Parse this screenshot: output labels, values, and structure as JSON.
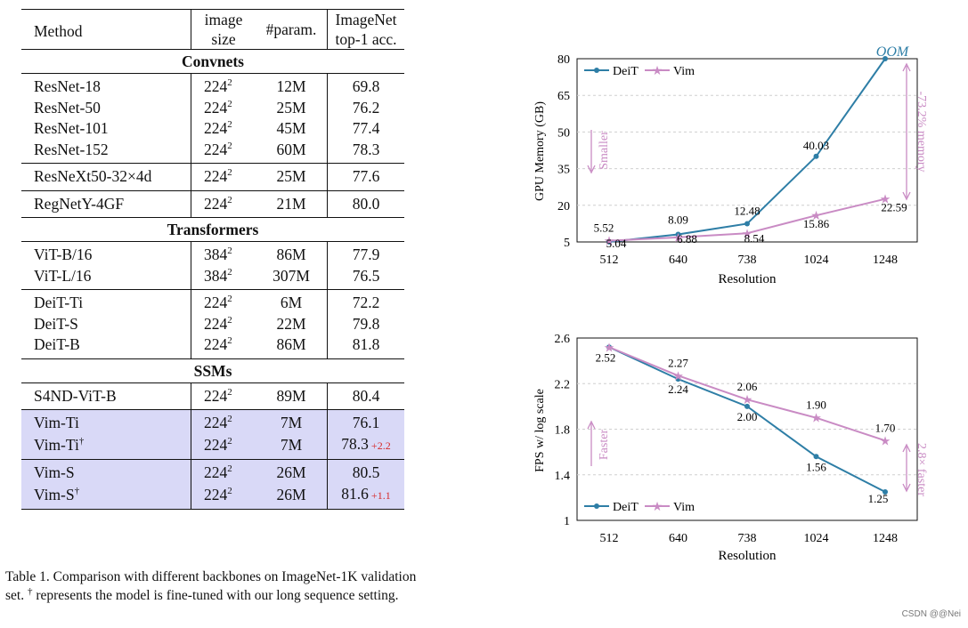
{
  "table": {
    "headers": {
      "method": "Method",
      "size_l1": "image",
      "size_l2": "size",
      "param": "#param.",
      "acc_l1": "ImageNet",
      "acc_l2": "top-1 acc."
    },
    "sections": {
      "convnets": "Convnets",
      "transformers": "Transformers",
      "ssms": "SSMs"
    },
    "rows": [
      {
        "method": "ResNet-18",
        "size": "224",
        "param": "12M",
        "acc": "69.8"
      },
      {
        "method": "ResNet-50",
        "size": "224",
        "param": "25M",
        "acc": "76.2"
      },
      {
        "method": "ResNet-101",
        "size": "224",
        "param": "45M",
        "acc": "77.4"
      },
      {
        "method": "ResNet-152",
        "size": "224",
        "param": "60M",
        "acc": "78.3"
      },
      {
        "method": "ResNeXt50-32×4d",
        "size": "224",
        "param": "25M",
        "acc": "77.6"
      },
      {
        "method": "RegNetY-4GF",
        "size": "224",
        "param": "21M",
        "acc": "80.0"
      },
      {
        "method": "ViT-B/16",
        "size": "384",
        "param": "86M",
        "acc": "77.9"
      },
      {
        "method": "ViT-L/16",
        "size": "384",
        "param": "307M",
        "acc": "76.5"
      },
      {
        "method": "DeiT-Ti",
        "size": "224",
        "param": "6M",
        "acc": "72.2"
      },
      {
        "method": "DeiT-S",
        "size": "224",
        "param": "22M",
        "acc": "79.8"
      },
      {
        "method": "DeiT-B",
        "size": "224",
        "param": "86M",
        "acc": "81.8"
      },
      {
        "method": "S4ND-ViT-B",
        "size": "224",
        "param": "89M",
        "acc": "80.4"
      },
      {
        "method": "Vim-Ti",
        "size": "224",
        "param": "7M",
        "acc": "76.1"
      },
      {
        "method": "Vim-Ti",
        "dagger": "†",
        "size": "224",
        "param": "7M",
        "acc": "78.3",
        "delta": "+2.2"
      },
      {
        "method": "Vim-S",
        "size": "224",
        "param": "26M",
        "acc": "80.5"
      },
      {
        "method": "Vim-S",
        "dagger": "†",
        "size": "224",
        "param": "26M",
        "acc": "81.6",
        "delta": "+1.1"
      }
    ],
    "superscript": "2",
    "highlight_color": "#d9d9f7",
    "delta_color": "#d62b2b"
  },
  "caption": {
    "part1": "Table 1. Comparison with different backbones on ImageNet-1K validation set.",
    "dagger": "†",
    "part2": "represents the model is fine-tuned with our long sequence setting."
  },
  "chart_data": [
    {
      "type": "line",
      "categories": [
        "512",
        "640",
        "738",
        "1024",
        "1248"
      ],
      "series": [
        {
          "name": "DeiT",
          "color": "#2e7ea6",
          "values": [
            5.04,
            8.09,
            12.48,
            40.03,
            80
          ]
        },
        {
          "name": "Vim",
          "color": "#c98bc4",
          "values": [
            5.52,
            6.88,
            8.54,
            15.86,
            22.59
          ]
        }
      ],
      "value_labels": {
        "DeiT": [
          "5.04",
          "8.09",
          "12.48",
          "40.03",
          ""
        ],
        "Vim": [
          "5.52",
          "6.88",
          "8.54",
          "15.86",
          "22.59"
        ]
      },
      "xlabel": "Resolution",
      "ylabel": "GPU Memory (GB)",
      "yticks": [
        5,
        20,
        35,
        50,
        65,
        80
      ],
      "ylim": [
        5,
        80
      ],
      "legend": "top-left",
      "annotations": {
        "oom": "OOM",
        "side_note": "Smaller",
        "gap": "-73.2% memory"
      }
    },
    {
      "type": "line",
      "categories": [
        "512",
        "640",
        "738",
        "1024",
        "1248"
      ],
      "series": [
        {
          "name": "DeiT",
          "color": "#2e7ea6",
          "values": [
            2.52,
            2.24,
            2.0,
            1.56,
            1.25
          ]
        },
        {
          "name": "Vim",
          "color": "#c98bc4",
          "values": [
            2.52,
            2.27,
            2.06,
            1.9,
            1.7
          ]
        }
      ],
      "value_labels": {
        "DeiT": [
          "2.52",
          "2.24",
          "2.00",
          "1.56",
          "1.25"
        ],
        "Vim": [
          "",
          "2.27",
          "2.06",
          "1.90",
          "1.70"
        ]
      },
      "xlabel": "Resolution",
      "ylabel": "FPS w/ log scale",
      "yticks": [
        "1",
        "1.4",
        "1.8",
        "2.2",
        "2.6"
      ],
      "ylim": [
        1,
        2.6
      ],
      "legend": "bottom-left",
      "annotations": {
        "side_note": "Faster",
        "gap": "2.8× faster"
      }
    }
  ],
  "watermark": "CSDN @@Nei"
}
